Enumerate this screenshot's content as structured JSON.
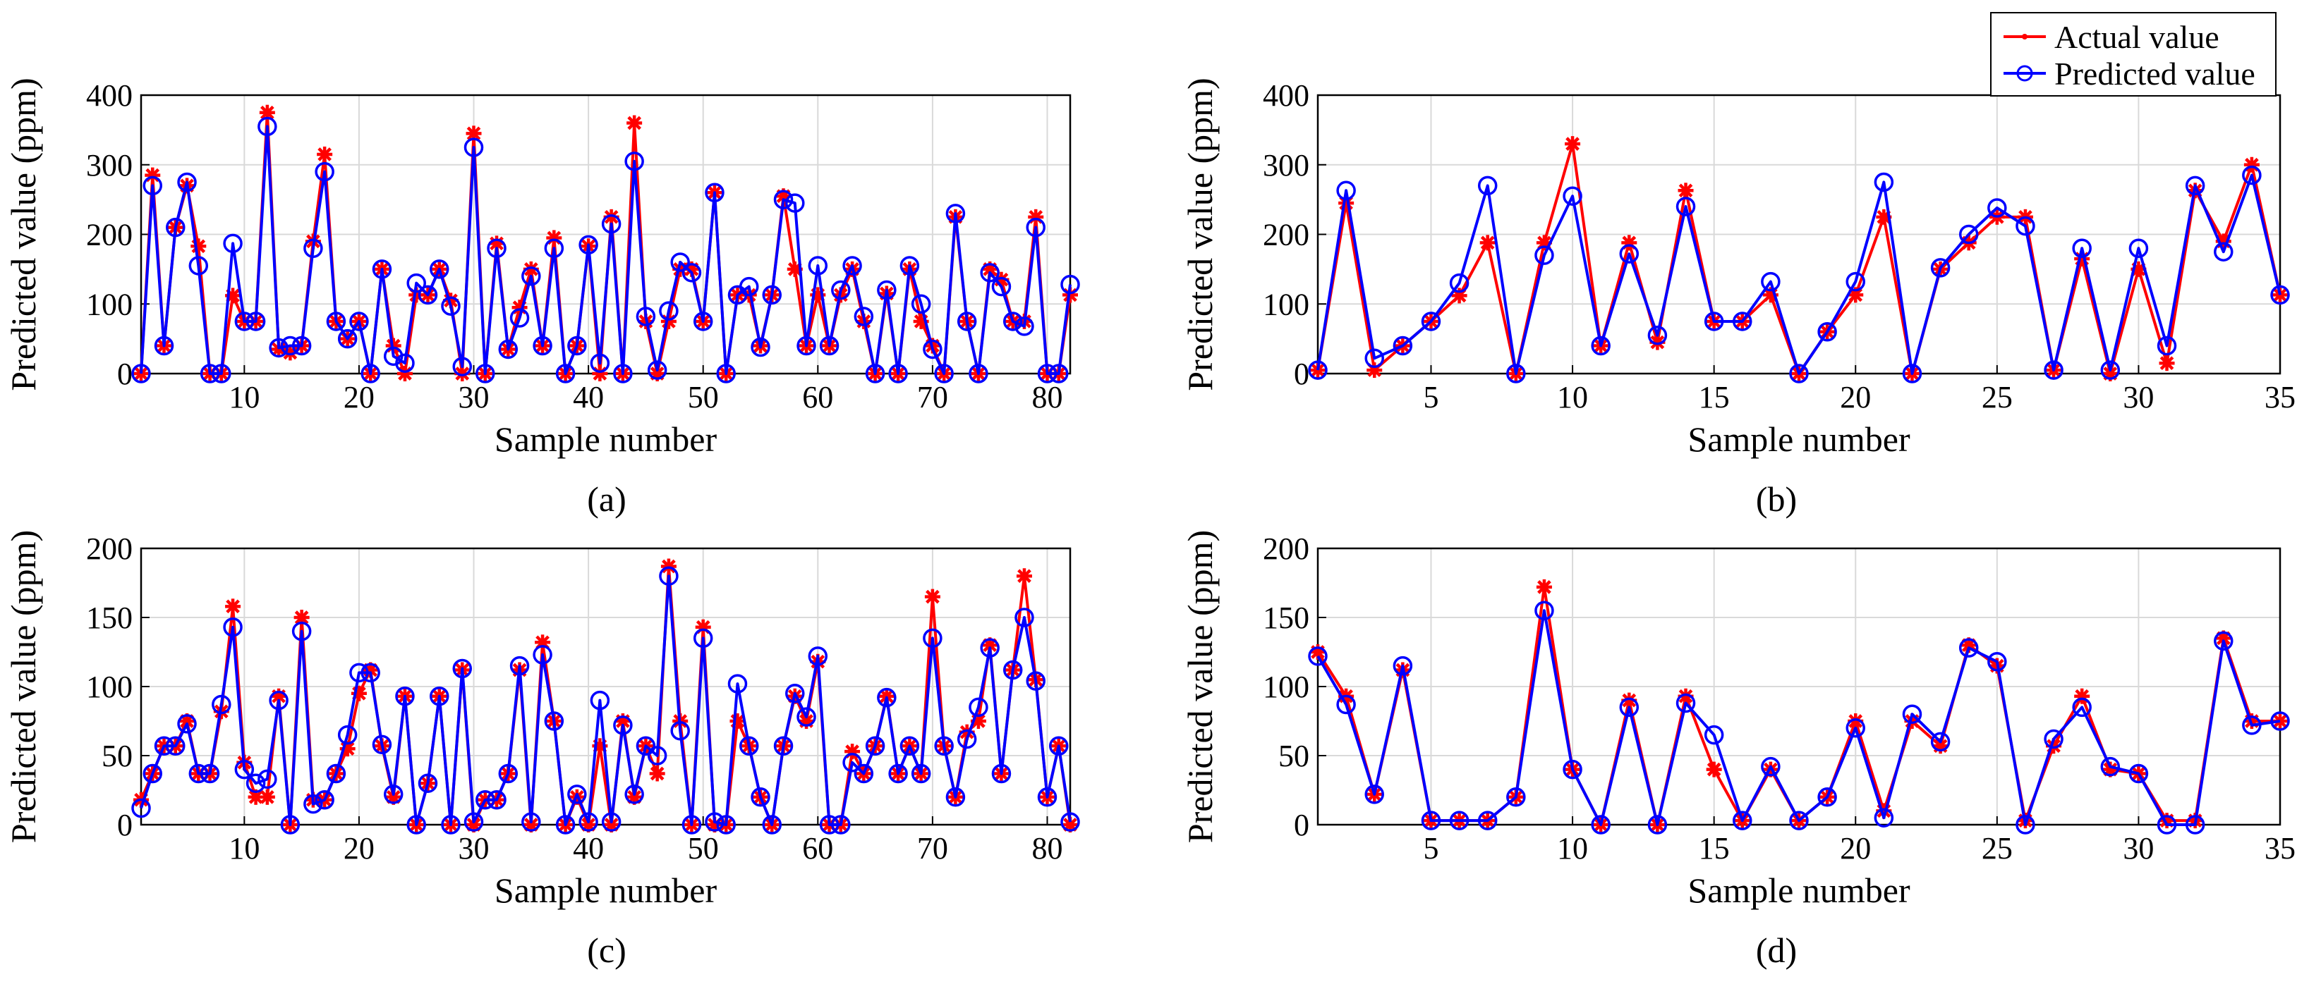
{
  "colors": {
    "actual": "#ff0000",
    "predicted": "#0000ff",
    "grid": "#d9d9d9",
    "axis": "#000000"
  },
  "legend": {
    "actual_label": "Actual value",
    "predicted_label": "Predicted value"
  },
  "chart_data": [
    {
      "id": "a",
      "caption": "(a)",
      "type": "line",
      "xlabel": "Sample number",
      "ylabel": "Predicted value (ppm)",
      "xlim": [
        1,
        82
      ],
      "ylim": [
        0,
        400
      ],
      "xticks": [
        10,
        20,
        30,
        40,
        50,
        60,
        70,
        80
      ],
      "yticks": [
        0,
        100,
        200,
        300,
        400
      ],
      "series": [
        {
          "name": "Actual value",
          "values": [
            0,
            285,
            40,
            210,
            270,
            183,
            0,
            0,
            112,
            75,
            75,
            375,
            35,
            30,
            40,
            190,
            315,
            75,
            50,
            75,
            0,
            150,
            40,
            0,
            113,
            113,
            150,
            105,
            0,
            345,
            0,
            187,
            35,
            95,
            150,
            40,
            195,
            0,
            40,
            183,
            0,
            225,
            0,
            360,
            75,
            0,
            75,
            150,
            150,
            75,
            260,
            0,
            113,
            113,
            40,
            113,
            255,
            150,
            40,
            113,
            40,
            113,
            150,
            75,
            0,
            115,
            0,
            150,
            75,
            40,
            0,
            225,
            75,
            0,
            150,
            135,
            75,
            75,
            225,
            0,
            0,
            113
          ]
        },
        {
          "name": "Predicted value",
          "values": [
            0,
            270,
            40,
            210,
            275,
            155,
            0,
            0,
            187,
            75,
            75,
            355,
            37,
            40,
            40,
            180,
            290,
            75,
            50,
            75,
            0,
            150,
            25,
            15,
            130,
            113,
            150,
            97,
            10,
            325,
            0,
            180,
            35,
            80,
            140,
            40,
            180,
            0,
            40,
            185,
            15,
            215,
            0,
            305,
            82,
            5,
            90,
            160,
            145,
            75,
            260,
            0,
            113,
            125,
            38,
            113,
            250,
            245,
            40,
            155,
            40,
            120,
            155,
            82,
            0,
            120,
            0,
            155,
            100,
            35,
            0,
            230,
            75,
            0,
            145,
            125,
            75,
            68,
            210,
            0,
            0,
            128
          ]
        }
      ]
    },
    {
      "id": "b",
      "caption": "(b)",
      "type": "line",
      "xlabel": "Sample number",
      "ylabel": "Predicted value (ppm)",
      "xlim": [
        1,
        35
      ],
      "ylim": [
        0,
        400
      ],
      "xticks": [
        5,
        10,
        15,
        20,
        25,
        30,
        35
      ],
      "yticks": [
        0,
        100,
        200,
        300,
        400
      ],
      "series": [
        {
          "name": "Actual value",
          "values": [
            5,
            245,
            5,
            40,
            75,
            112,
            188,
            0,
            188,
            330,
            40,
            188,
            45,
            263,
            75,
            75,
            113,
            0,
            60,
            113,
            225,
            0,
            150,
            188,
            225,
            225,
            5,
            165,
            0,
            150,
            15,
            263,
            190,
            300,
            113
          ]
        },
        {
          "name": "Predicted value",
          "values": [
            5,
            263,
            22,
            40,
            75,
            130,
            270,
            0,
            170,
            255,
            40,
            172,
            55,
            240,
            75,
            75,
            132,
            0,
            60,
            132,
            275,
            0,
            152,
            200,
            238,
            212,
            5,
            180,
            5,
            180,
            40,
            270,
            175,
            285,
            113
          ]
        }
      ]
    },
    {
      "id": "c",
      "caption": "(c)",
      "type": "line",
      "xlabel": "Sample number",
      "ylabel": "Predicted value (ppm)",
      "xlim": [
        1,
        82
      ],
      "ylim": [
        0,
        200
      ],
      "xticks": [
        10,
        20,
        30,
        40,
        50,
        60,
        70,
        80
      ],
      "yticks": [
        0,
        50,
        100,
        150,
        200
      ],
      "series": [
        {
          "name": "Actual value",
          "values": [
            18,
            37,
            57,
            57,
            75,
            37,
            37,
            82,
            158,
            45,
            20,
            20,
            93,
            0,
            150,
            18,
            18,
            37,
            55,
            95,
            112,
            57,
            20,
            93,
            0,
            30,
            93,
            0,
            112,
            0,
            18,
            18,
            37,
            112,
            0,
            132,
            75,
            0,
            20,
            0,
            57,
            0,
            75,
            20,
            57,
            37,
            187,
            75,
            0,
            143,
            0,
            0,
            75,
            57,
            20,
            0,
            57,
            93,
            75,
            118,
            0,
            0,
            53,
            37,
            57,
            93,
            37,
            57,
            37,
            165,
            57,
            20,
            67,
            75,
            130,
            37,
            112,
            180,
            105,
            20,
            57,
            0
          ]
        },
        {
          "name": "Predicted value",
          "values": [
            12,
            37,
            57,
            57,
            73,
            37,
            37,
            87,
            143,
            40,
            30,
            33,
            90,
            0,
            140,
            15,
            18,
            37,
            65,
            110,
            110,
            58,
            22,
            93,
            0,
            30,
            93,
            0,
            113,
            2,
            18,
            18,
            37,
            115,
            2,
            123,
            75,
            0,
            22,
            2,
            90,
            2,
            72,
            22,
            57,
            50,
            180,
            68,
            0,
            135,
            2,
            0,
            102,
            57,
            20,
            0,
            57,
            95,
            78,
            122,
            0,
            0,
            45,
            37,
            57,
            92,
            37,
            57,
            37,
            135,
            57,
            20,
            62,
            85,
            128,
            37,
            112,
            150,
            104,
            20,
            57,
            2
          ]
        }
      ]
    },
    {
      "id": "d",
      "caption": "(d)",
      "type": "line",
      "xlabel": "Sample number",
      "ylabel": "Predicted value (ppm)",
      "xlim": [
        1,
        35
      ],
      "ylim": [
        0,
        200
      ],
      "xticks": [
        5,
        10,
        15,
        20,
        25,
        30,
        35
      ],
      "yticks": [
        0,
        50,
        100,
        150,
        200
      ],
      "series": [
        {
          "name": "Actual value",
          "values": [
            125,
            93,
            22,
            112,
            3,
            3,
            3,
            20,
            172,
            40,
            0,
            90,
            0,
            93,
            40,
            3,
            40,
            3,
            20,
            75,
            10,
            75,
            57,
            130,
            115,
            3,
            57,
            93,
            40,
            37,
            3,
            3,
            135,
            75,
            75
          ]
        },
        {
          "name": "Predicted value",
          "values": [
            122,
            87,
            22,
            115,
            3,
            3,
            3,
            20,
            155,
            40,
            0,
            85,
            0,
            88,
            65,
            3,
            42,
            3,
            20,
            70,
            5,
            80,
            60,
            128,
            118,
            0,
            62,
            85,
            42,
            37,
            0,
            0,
            133,
            72,
            75
          ]
        }
      ]
    }
  ]
}
